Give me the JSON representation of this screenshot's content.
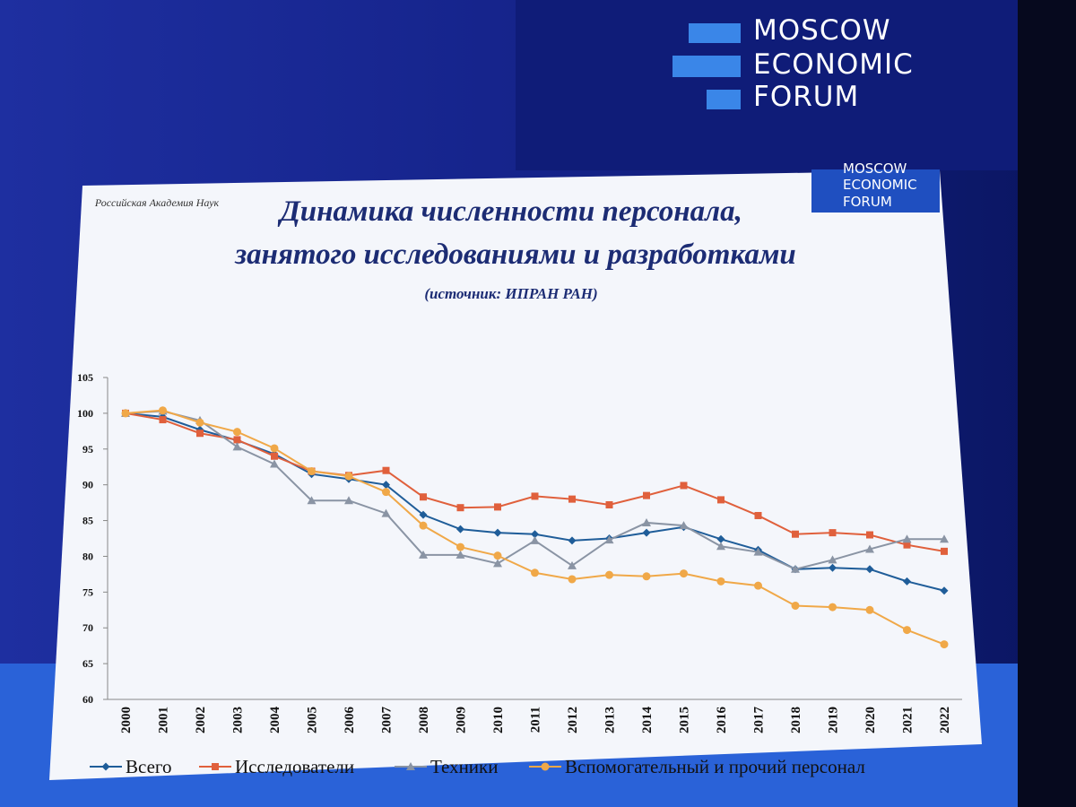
{
  "branding": {
    "logo": [
      "MOSCOW",
      "ECONOMIC",
      "FORUM"
    ],
    "slide_logo": [
      "MOSCOW",
      "ECONOMIC",
      "FORUM"
    ],
    "academy": "Российская Академия Наук"
  },
  "chart_data": {
    "type": "line",
    "title": [
      "Динамика численности персонала,",
      "занятого исследованиями и разработками"
    ],
    "subtitle": "(источник: ИПРАН РАН)",
    "categories": [
      "2000",
      "2001",
      "2002",
      "2003",
      "2004",
      "2005",
      "2006",
      "2007",
      "2008",
      "2009",
      "2010",
      "2011",
      "2012",
      "2013",
      "2014",
      "2015",
      "2016",
      "2017",
      "2018",
      "2019",
      "2020",
      "2021",
      "2022"
    ],
    "ylim": [
      60,
      105
    ],
    "yticks": [
      60,
      65,
      70,
      75,
      80,
      85,
      90,
      95,
      100,
      105
    ],
    "grid": false,
    "legend": "bottom",
    "series": [
      {
        "name": "Всего",
        "color": "#1f5d99",
        "marker": "diamond",
        "values": [
          100,
          99.5,
          97.7,
          96.2,
          94.3,
          91.5,
          90.8,
          90.0,
          85.8,
          83.8,
          83.3,
          83.1,
          82.2,
          82.5,
          83.3,
          84.1,
          82.4,
          80.9,
          78.2,
          78.4,
          78.2,
          76.5,
          75.2
        ]
      },
      {
        "name": "Исследователи",
        "color": "#e0603c",
        "marker": "square",
        "values": [
          100,
          99.1,
          97.2,
          96.3,
          94.0,
          91.9,
          91.3,
          92.0,
          88.3,
          86.8,
          86.9,
          88.4,
          88.0,
          87.2,
          88.5,
          89.9,
          87.9,
          85.7,
          83.1,
          83.3,
          83.0,
          81.6,
          80.7
        ]
      },
      {
        "name": "Техники",
        "color": "#8a94a4",
        "marker": "triangle",
        "values": [
          100,
          100.3,
          99.0,
          95.3,
          92.9,
          87.8,
          87.8,
          86.0,
          80.2,
          80.2,
          79.0,
          82.2,
          78.7,
          82.3,
          84.7,
          84.3,
          81.4,
          80.6,
          78.2,
          79.5,
          81.0,
          82.4,
          82.4
        ]
      },
      {
        "name": "Вспомогательный и прочий персонал",
        "color": "#f0a848",
        "marker": "circle",
        "values": [
          100,
          100.4,
          98.7,
          97.4,
          95.1,
          91.9,
          91.2,
          89.0,
          84.3,
          81.3,
          80.1,
          77.7,
          76.8,
          77.4,
          77.2,
          77.6,
          76.5,
          75.9,
          73.1,
          72.9,
          72.5,
          69.7,
          67.7
        ]
      }
    ]
  }
}
